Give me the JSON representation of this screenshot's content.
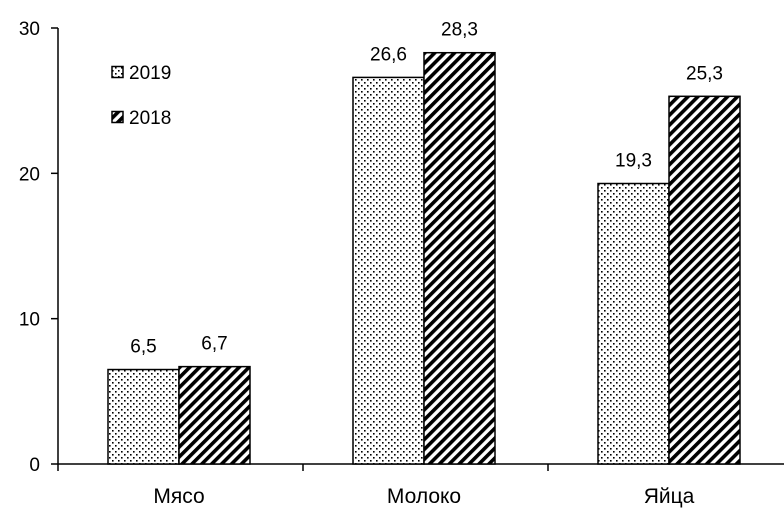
{
  "chart_data": {
    "type": "bar",
    "categories": [
      "Мясо",
      "Молоко",
      "Яйца"
    ],
    "series": [
      {
        "name": "2019",
        "values": [
          6.5,
          26.6,
          19.3
        ],
        "labels": [
          "6,5",
          "26,6",
          "19,3"
        ],
        "pattern": "dots"
      },
      {
        "name": "2018",
        "values": [
          6.7,
          28.3,
          25.3
        ],
        "labels": [
          "6,7",
          "28,3",
          "25,3"
        ],
        "pattern": "diagonal-hatch"
      }
    ],
    "yticks": [
      0,
      10,
      20,
      30
    ],
    "ylim": [
      0,
      30
    ],
    "title": "",
    "xlabel": "",
    "ylabel": "",
    "legend_position": "top-left",
    "grid": false,
    "colors": {
      "ink": "#000000",
      "background": "#ffffff"
    }
  }
}
